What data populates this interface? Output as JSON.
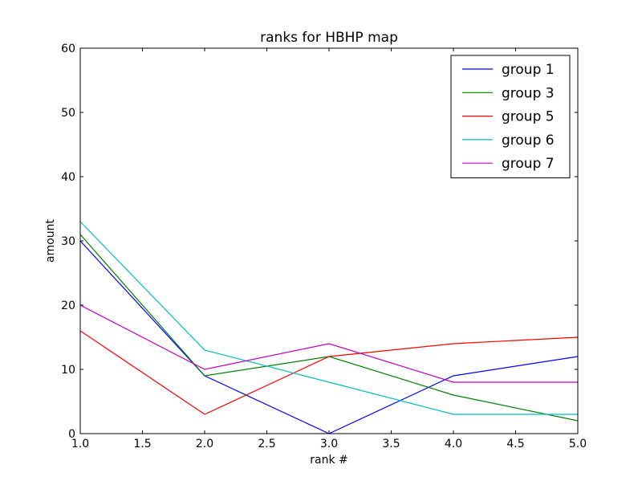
{
  "chart_data": {
    "type": "line",
    "title": "ranks for HBHP map",
    "xlabel": "rank #",
    "ylabel": "amount",
    "xlim": [
      1.0,
      5.0
    ],
    "ylim": [
      0,
      60
    ],
    "xticks": [
      1.0,
      1.5,
      2.0,
      2.5,
      3.0,
      3.5,
      4.0,
      4.5,
      5.0
    ],
    "xtick_labels": [
      "1.0",
      "1.5",
      "2.0",
      "2.5",
      "3.0",
      "3.5",
      "4.0",
      "4.5",
      "5.0"
    ],
    "yticks": [
      0,
      10,
      20,
      30,
      40,
      50,
      60
    ],
    "ytick_labels": [
      "0",
      "10",
      "20",
      "30",
      "40",
      "50",
      "60"
    ],
    "grid": false,
    "legend_position": "top-right",
    "x": [
      1,
      2,
      3,
      4,
      5
    ],
    "series": [
      {
        "name": "group 1",
        "color": "#0000ff",
        "values": [
          30,
          9,
          0,
          9,
          12
        ]
      },
      {
        "name": "group 3",
        "color": "#008000",
        "values": [
          31,
          9,
          12,
          6,
          2
        ]
      },
      {
        "name": "group 5",
        "color": "#ff0000",
        "values": [
          16,
          3,
          12,
          14,
          15
        ]
      },
      {
        "name": "group 6",
        "color": "#00bfbf",
        "values": [
          33,
          13,
          8,
          3,
          3
        ]
      },
      {
        "name": "group 7",
        "color": "#bf00bf",
        "values": [
          20,
          10,
          14,
          8,
          8
        ]
      }
    ]
  }
}
